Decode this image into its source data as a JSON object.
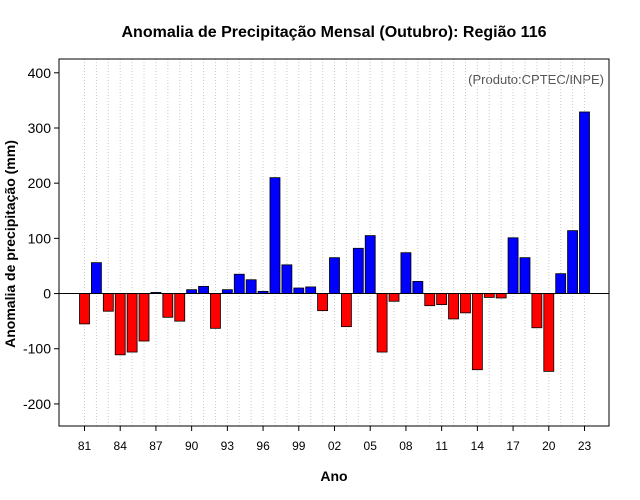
{
  "chart_data": {
    "type": "bar",
    "title": "Anomalia de Precipitação Mensal (Outubro): Região 116",
    "xlabel": "Ano",
    "ylabel": "Anomalia de precipitação (mm)",
    "credit": "(Produto:CPTEC/INPE)",
    "ylim": [
      -240,
      425
    ],
    "yticks": [
      400,
      300,
      200,
      100,
      0,
      -100,
      -200
    ],
    "xtick_labels": [
      "81",
      "84",
      "87",
      "90",
      "93",
      "96",
      "99",
      "02",
      "05",
      "08",
      "11",
      "14",
      "17",
      "20",
      "23"
    ],
    "grid": "vertical-dotted",
    "colors": {
      "positive": "#0000ff",
      "negative": "#ff0000"
    },
    "categories": [
      "1981",
      "1982",
      "1983",
      "1984",
      "1985",
      "1986",
      "1987",
      "1988",
      "1989",
      "1990",
      "1991",
      "1992",
      "1993",
      "1994",
      "1995",
      "1996",
      "1997",
      "1998",
      "1999",
      "2000",
      "2001",
      "2002",
      "2003",
      "2004",
      "2005",
      "2006",
      "2007",
      "2008",
      "2009",
      "2010",
      "2011",
      "2012",
      "2013",
      "2014",
      "2015",
      "2016",
      "2017",
      "2018",
      "2019",
      "2020",
      "2021",
      "2022",
      "2023"
    ],
    "values": [
      -55,
      56,
      -32,
      -111,
      -106,
      -86,
      2,
      -43,
      -50,
      7,
      13,
      -63,
      7,
      35,
      25,
      4,
      210,
      52,
      10,
      12,
      -31,
      65,
      -60,
      82,
      105,
      -106,
      -14,
      74,
      22,
      -22,
      -20,
      -46,
      -35,
      -138,
      -7,
      -8,
      101,
      65,
      -62,
      -141,
      36,
      114,
      329
    ]
  }
}
